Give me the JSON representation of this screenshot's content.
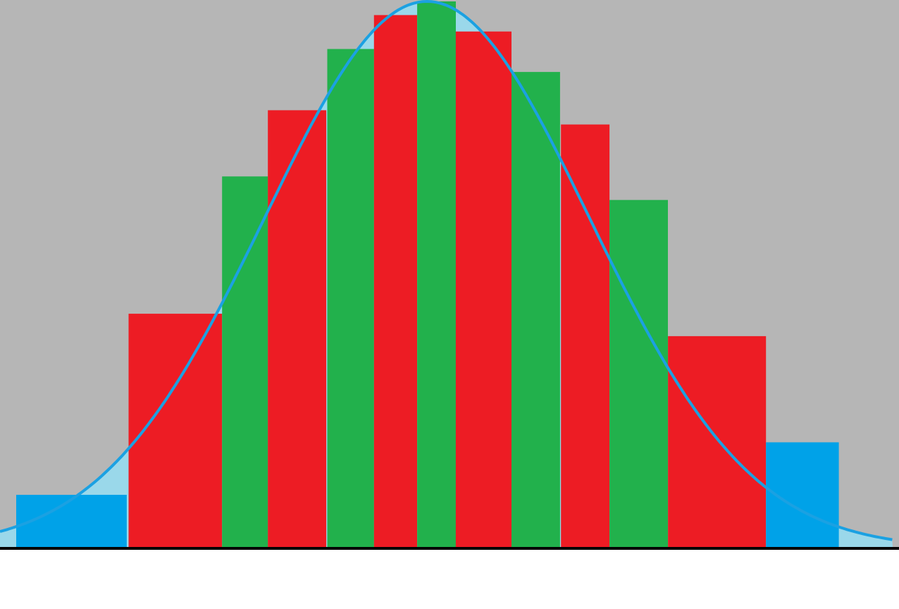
{
  "colors": {
    "background": "#b6b6b6",
    "curve_fill": "#9ad8ea",
    "curve_stroke": "#1ba1e2",
    "red": "#ed1c24",
    "green": "#22b14c",
    "blue": "#00a2e8",
    "axis": "#000000",
    "below_axis": "#ffffff"
  },
  "chart_data": {
    "type": "bar",
    "title": "",
    "xlabel": "",
    "ylabel": "",
    "xlim": [
      0,
      100
    ],
    "ylim": [
      0,
      100
    ],
    "grid": false,
    "bars": [
      {
        "x0": 1.8,
        "x1": 14.1,
        "value": 9.8,
        "color": "blue"
      },
      {
        "x0": 14.3,
        "x1": 24.7,
        "value": 42.9,
        "color": "red"
      },
      {
        "x0": 24.7,
        "x1": 29.8,
        "value": 68.0,
        "color": "green"
      },
      {
        "x0": 29.8,
        "x1": 36.3,
        "value": 80.1,
        "color": "red"
      },
      {
        "x0": 36.4,
        "x1": 41.6,
        "value": 91.3,
        "color": "green"
      },
      {
        "x0": 41.6,
        "x1": 46.4,
        "value": 97.5,
        "color": "red"
      },
      {
        "x0": 46.4,
        "x1": 50.7,
        "value": 100.0,
        "color": "green"
      },
      {
        "x0": 50.7,
        "x1": 56.9,
        "value": 94.5,
        "color": "red"
      },
      {
        "x0": 56.9,
        "x1": 62.3,
        "value": 87.1,
        "color": "green"
      },
      {
        "x0": 62.4,
        "x1": 67.8,
        "value": 77.5,
        "color": "red"
      },
      {
        "x0": 67.8,
        "x1": 74.3,
        "value": 63.7,
        "color": "green"
      },
      {
        "x0": 74.3,
        "x1": 85.2,
        "value": 38.8,
        "color": "red"
      },
      {
        "x0": 85.2,
        "x1": 93.3,
        "value": 19.4,
        "color": "blue"
      }
    ],
    "curve": {
      "shape": "bell",
      "center": 47.5,
      "sigma": 18,
      "peak": 100,
      "x_start": 0,
      "x_end": 99.3
    }
  }
}
